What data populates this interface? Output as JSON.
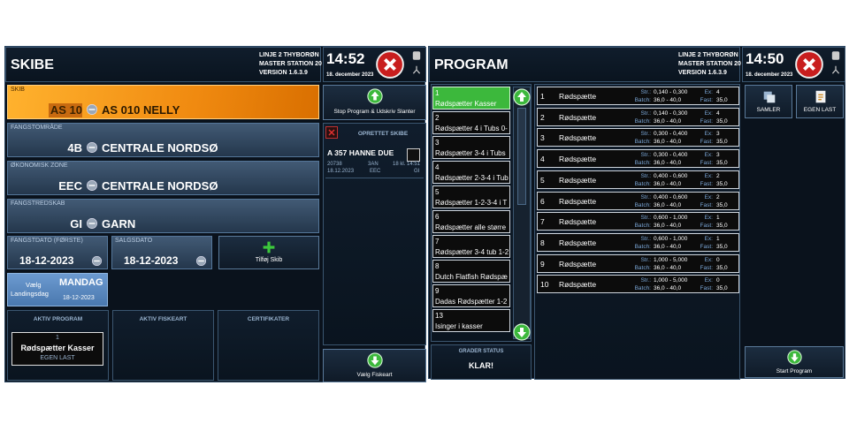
{
  "skibe_screen": {
    "header": {
      "title": "SKIBE",
      "info": [
        "LINJE 2 THYBORØN",
        "MASTER STATION 20",
        "VERSION 1.6.3.9"
      ]
    },
    "clock": {
      "time": "14:52",
      "date": "18. december 2023"
    },
    "fields": [
      {
        "label": "SKIB",
        "code": "AS 10",
        "value": "AS 010 NELLY"
      },
      {
        "label": "FANGSTOMRÅDE",
        "code": "4B",
        "value": "CENTRALE NORDSØ"
      },
      {
        "label": "ØKONOMISK ZONE",
        "code": "EEC",
        "value": "CENTRALE NORDSØ"
      },
      {
        "label": "FANGSTREDSKAB",
        "code": "GI",
        "value": "GARN"
      }
    ],
    "dates": [
      {
        "label": "FANGSTDATO (FØRSTE)",
        "value": "18-12-2023"
      },
      {
        "label": "SALGSDATO",
        "value": "18-12-2023"
      }
    ],
    "add_ship_button": "Tilføj Skib",
    "landing_day": {
      "line1": "Vælg",
      "line2": "Landingsdag",
      "day": "MANDAG",
      "date": "18-12-2023"
    },
    "bottom_panels": [
      {
        "title": "AKTIV PROGRAM"
      },
      {
        "title": "AKTIV FISKEART"
      },
      {
        "title": "CERTIFIKATER"
      }
    ],
    "active_program": {
      "number": 1,
      "name": "Rødspætter Kasser",
      "location": "EGEN LAST"
    },
    "stop_button": "Stop Program & Udskriv Slanter",
    "created_ships": {
      "title": "OPRETTET SKIBE",
      "items": [
        {
          "name": "A 357 HANNE DUE",
          "id": "20738",
          "code": "3AN",
          "time": "18 kl. 14:51",
          "date": "18.12.2023",
          "zone": "EEC",
          "gear": "GI"
        }
      ]
    },
    "select_species_button": "Vælg Fiskeart"
  },
  "program_screen": {
    "header": {
      "title": "PROGRAM",
      "info": [
        "LINJE 2 THYBORØN",
        "MASTER STATION 20",
        "VERSION 1.6.3.9"
      ]
    },
    "clock": {
      "time": "14:50",
      "date": "18. december 2023"
    },
    "programs": [
      {
        "number": 1,
        "name": "Rødspætter Kasser"
      },
      {
        "number": 2,
        "name": "Rødspætter 4 i Tubs 0-"
      },
      {
        "number": 3,
        "name": "Rødspætter 3-4 i Tubs"
      },
      {
        "number": 4,
        "name": "Rødspætter 2-3-4 i Tub"
      },
      {
        "number": 5,
        "name": "Rødspætter 1-2-3-4 i T"
      },
      {
        "number": 6,
        "name": "Rødspætter alle større"
      },
      {
        "number": 7,
        "name": "Rødspætter 3-4 tub 1-2"
      },
      {
        "number": 8,
        "name": "Dutch Flatfish Rødspæ"
      },
      {
        "number": 9,
        "name": "Dadas Rødspætter 1-2"
      },
      {
        "number": 13,
        "name": "Isinger i kasser"
      }
    ],
    "status": {
      "title": "GRADER STATUS",
      "value": "KLAR!"
    },
    "labels": {
      "size": "Str.:",
      "ex": "Ex:",
      "batch": "Batch:",
      "fast": "Fast:"
    },
    "rows": [
      {
        "number": 1,
        "species": "Rødspætte",
        "size": "0,140 - 0,300",
        "ex": 4,
        "batch": "36,0 - 40,0",
        "fast": "35,0"
      },
      {
        "number": 2,
        "species": "Rødspætte",
        "size": "0,140 - 0,300",
        "ex": 4,
        "batch": "36,0 - 40,0",
        "fast": "35,0"
      },
      {
        "number": 3,
        "species": "Rødspætte",
        "size": "0,300 - 0,400",
        "ex": 3,
        "batch": "36,0 - 40,0",
        "fast": "35,0"
      },
      {
        "number": 4,
        "species": "Rødspætte",
        "size": "0,300 - 0,400",
        "ex": 3,
        "batch": "36,0 - 40,0",
        "fast": "35,0"
      },
      {
        "number": 5,
        "species": "Rødspætte",
        "size": "0,400 - 0,600",
        "ex": 2,
        "batch": "36,0 - 40,0",
        "fast": "35,0"
      },
      {
        "number": 6,
        "species": "Rødspætte",
        "size": "0,400 - 0,600",
        "ex": 2,
        "batch": "36,0 - 40,0",
        "fast": "35,0"
      },
      {
        "number": 7,
        "species": "Rødspætte",
        "size": "0,600 - 1,000",
        "ex": 1,
        "batch": "36,0 - 40,0",
        "fast": "35,0"
      },
      {
        "number": 8,
        "species": "Rødspætte",
        "size": "0,600 - 1,000",
        "ex": 1,
        "batch": "36,0 - 40,0",
        "fast": "35,0"
      },
      {
        "number": 9,
        "species": "Rødspætte",
        "size": "1,000 - 5,000",
        "ex": 0,
        "batch": "36,0 - 40,0",
        "fast": "35,0"
      },
      {
        "number": 10,
        "species": "Rødspætte",
        "size": "1,000 - 5,000",
        "ex": 0,
        "batch": "36,0 - 40,0",
        "fast": "35,0"
      }
    ],
    "collector_button": "SAMLER",
    "own_load_button": "EGEN LAST",
    "start_button": "Start Program"
  }
}
